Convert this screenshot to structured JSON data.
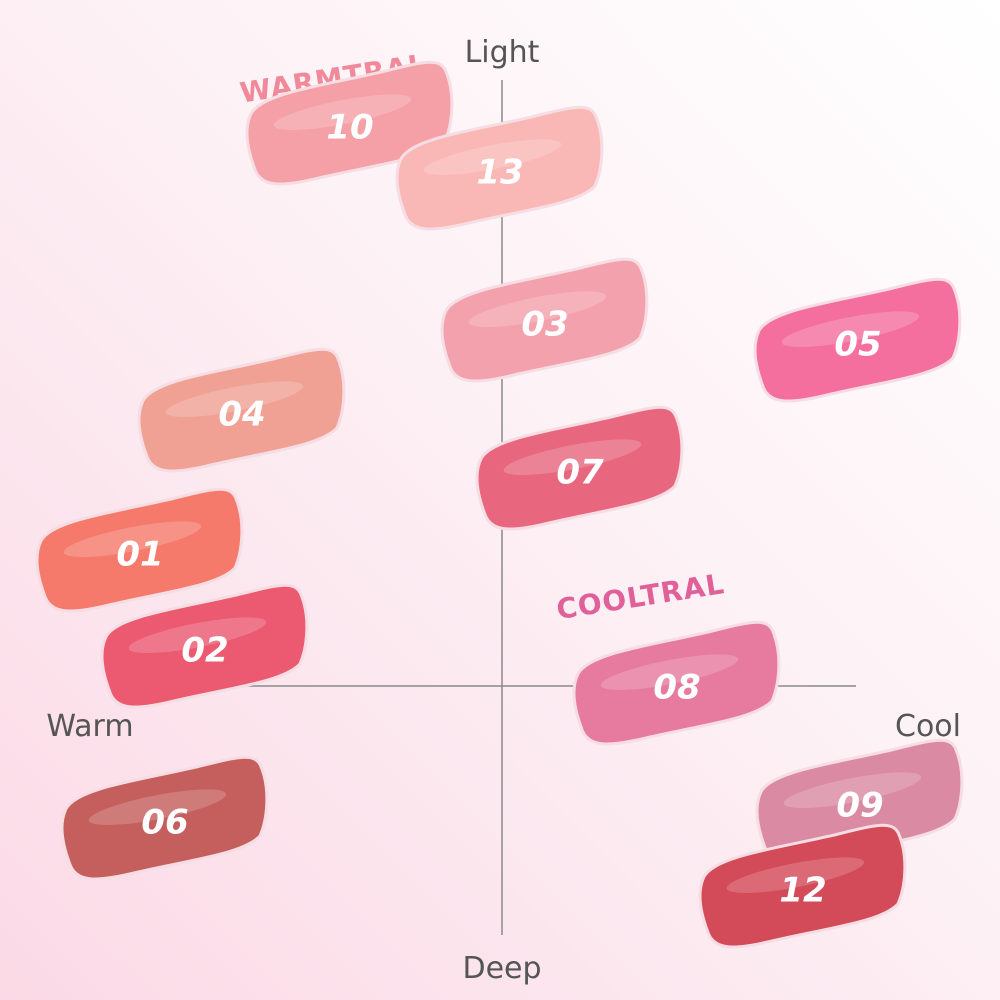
{
  "axes": {
    "top": "Light",
    "bottom": "Deep",
    "left": "Warm",
    "right": "Cool"
  },
  "groups": {
    "warm": "WARMTRAL",
    "cool": "COOLTRAL"
  },
  "swatches": [
    "10",
    "13",
    "03",
    "05",
    "04",
    "07",
    "01",
    "02",
    "08",
    "06",
    "09",
    "12"
  ]
}
